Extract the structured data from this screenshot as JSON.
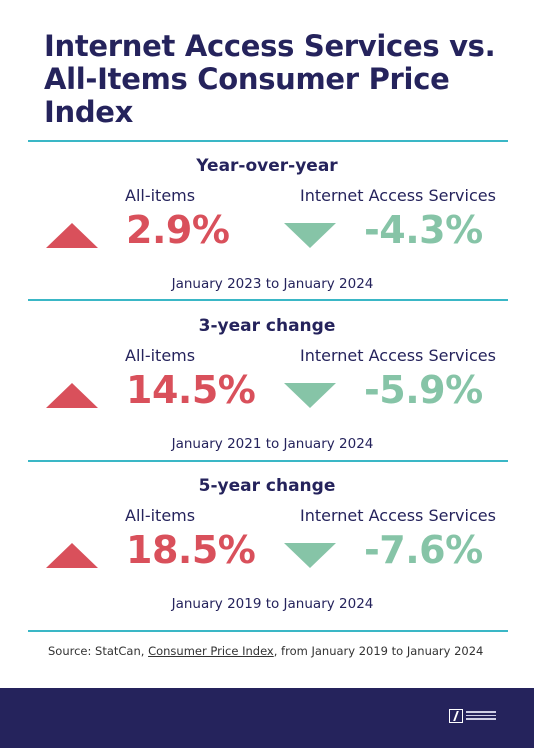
{
  "title": "Internet Access Services vs. All-Items Consumer Price Index",
  "colors": {
    "increase": "#d9505b",
    "decrease": "#86c4a7",
    "navy": "#25235c",
    "rule": "#3ab7c6"
  },
  "sections": [
    {
      "heading": "Year-over-year",
      "all_items_label": "All-items",
      "internet_label": "Internet Access Services",
      "all_items_value": "2.9%",
      "all_items_direction": "up",
      "internet_value": "-4.3%",
      "internet_direction": "down",
      "period": "January 2023 to January 2024"
    },
    {
      "heading": "3-year change",
      "all_items_label": "All-items",
      "internet_label": "Internet Access Services",
      "all_items_value": "14.5%",
      "all_items_direction": "up",
      "internet_value": "-5.9%",
      "internet_direction": "down",
      "period": "January 2021 to January 2024"
    },
    {
      "heading": "5-year change",
      "all_items_label": "All-items",
      "internet_label": "Internet Access Services",
      "all_items_value": "18.5%",
      "all_items_direction": "up",
      "internet_value": "-7.6%",
      "internet_direction": "down",
      "period": "January 2019 to January 2024"
    }
  ],
  "source": {
    "prefix": "Source: StatCan, ",
    "link_text": "Consumer Price Index",
    "suffix": ", from January 2019 to January 2024"
  },
  "footer": {
    "logo_icon": "organization-logo-icon"
  }
}
